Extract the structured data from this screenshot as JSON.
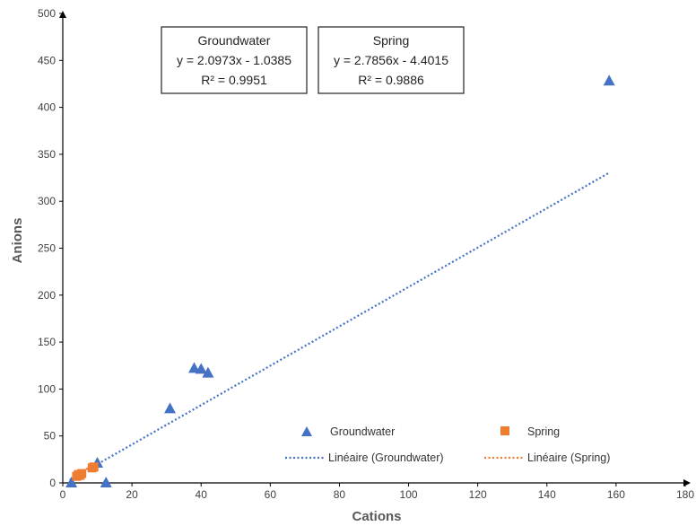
{
  "chart_data": {
    "type": "scatter",
    "xlabel": "Cations",
    "ylabel": "Anions",
    "xlim": [
      0,
      180
    ],
    "ylim": [
      0,
      500
    ],
    "xticks": [
      "0",
      "20",
      "40",
      "60",
      "80",
      "100",
      "120",
      "140",
      "160",
      "180"
    ],
    "yticks": [
      "0",
      "50",
      "100",
      "150",
      "200",
      "250",
      "300",
      "350",
      "400",
      "450",
      "500"
    ],
    "grid": false,
    "legend_position": "bottom-right",
    "series": [
      {
        "name": "Groundwater",
        "marker": "triangle",
        "color": "#4472C4",
        "points": [
          {
            "x": 2.5,
            "y": 0
          },
          {
            "x": 10,
            "y": 21
          },
          {
            "x": 12.5,
            "y": 0
          },
          {
            "x": 31,
            "y": 79
          },
          {
            "x": 38,
            "y": 122
          },
          {
            "x": 40,
            "y": 121
          },
          {
            "x": 42,
            "y": 117
          },
          {
            "x": 158,
            "y": 428
          }
        ]
      },
      {
        "name": "Spring",
        "marker": "square",
        "color": "#ED7D31",
        "points": [
          {
            "x": 4,
            "y": 7
          },
          {
            "x": 4.5,
            "y": 9
          },
          {
            "x": 5,
            "y": 8
          },
          {
            "x": 5.5,
            "y": 10
          },
          {
            "x": 8.5,
            "y": 16
          },
          {
            "x": 9,
            "y": 17
          }
        ]
      }
    ],
    "trendlines": [
      {
        "name": "Linéaire (Groundwater)",
        "slope": 2.0973,
        "intercept": -1.0385,
        "x_range": [
          2,
          158
        ],
        "color": "#4472C4"
      },
      {
        "name": "Linéaire (Spring)",
        "slope": 2.7856,
        "intercept": -4.4015,
        "x_range": [
          4,
          9
        ],
        "color": "#ED7D31"
      }
    ],
    "equation_boxes": [
      {
        "title": "Groundwater",
        "equation": "y = 2.0973x - 1.0385",
        "r2": "R² = 0.9951"
      },
      {
        "title": "Spring",
        "equation": "y = 2.7856x - 4.4015",
        "r2": "R² = 0.9886"
      }
    ],
    "legend": {
      "groundwater_marker": "Groundwater",
      "spring_marker": "Spring",
      "groundwater_line": "Linéaire (Groundwater)",
      "spring_line": "Linéaire (Spring)"
    }
  }
}
